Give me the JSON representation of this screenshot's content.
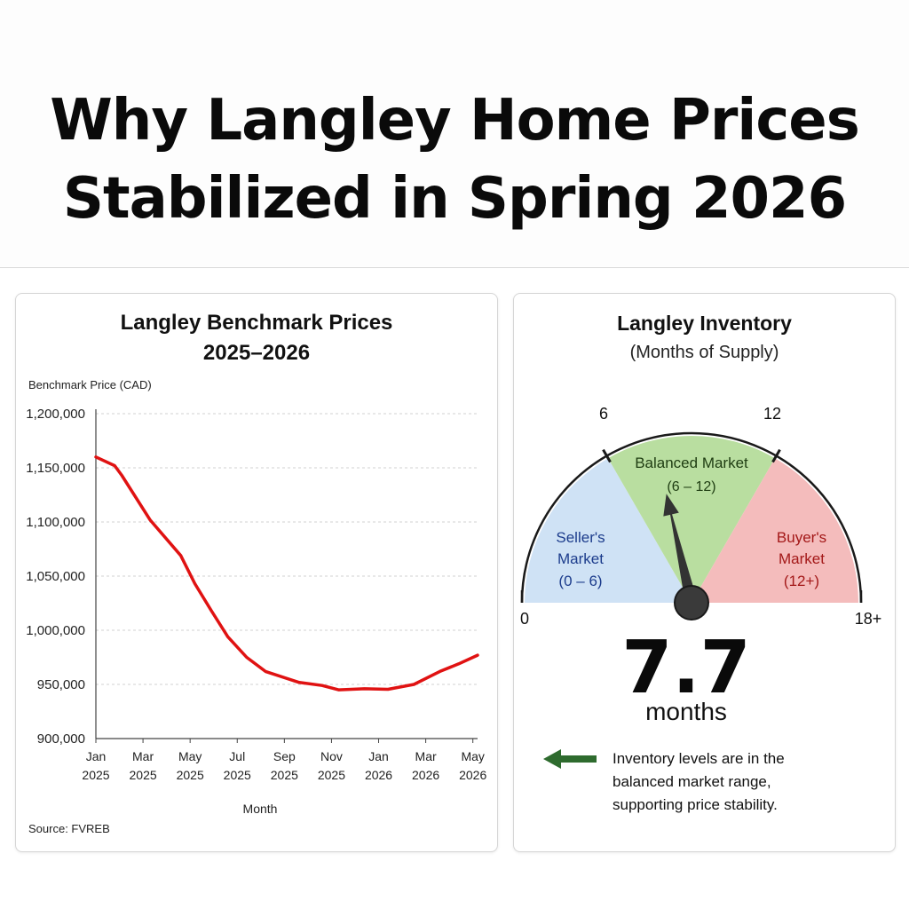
{
  "page": {
    "title_line1": "Why Langley Home Prices",
    "title_line2": "Stabilized in Spring 2026"
  },
  "price_chart": {
    "title_line1": "Langley Benchmark Prices",
    "title_line2": "2025–2026",
    "source": "Source: FVREB"
  },
  "inventory": {
    "title": "Langley Inventory",
    "subtitle": "(Months of Supply)",
    "value": "7.7",
    "value_unit": "months",
    "value_number": 7.7,
    "scale_min": 0,
    "scale_max": 18,
    "scale_labels": {
      "min": "0",
      "six": "6",
      "twelve": "12",
      "max": "18+"
    },
    "zones": [
      {
        "id": "sellers",
        "line1": "Seller's",
        "line2": "Market",
        "line3": "(0 – 6)",
        "from": 0,
        "to": 6,
        "fill": "#cfe2f5",
        "text_color": "#1c3c8c"
      },
      {
        "id": "balanced",
        "line1": "Balanced Market",
        "line2": "(6 – 12)",
        "from": 6,
        "to": 12,
        "fill": "#b9dea0",
        "text_color": "#1f3d12"
      },
      {
        "id": "buyers",
        "line1": "Buyer's",
        "line2": "Market",
        "line3": "(12+)",
        "from": 12,
        "to": 18,
        "fill": "#f4bcbc",
        "text_color": "#a31818"
      }
    ],
    "note_line1": "Inventory levels are in the",
    "note_line2": "balanced market range,",
    "note_line3": "supporting price stability.",
    "arrow_color": "#2e6b2e"
  },
  "chart_data": {
    "type": "line",
    "title": "Langley Benchmark Prices 2025–2026",
    "xlabel": "Month",
    "ylabel": "Benchmark Price (CAD)",
    "ylim": [
      900000,
      1200000
    ],
    "y_ticks": [
      "1,200,000",
      "1,150,000",
      "1,100,000",
      "1,050,000",
      "1,000,000",
      "950,000",
      "900,000"
    ],
    "y_tick_values": [
      1200000,
      1150000,
      1100000,
      1050000,
      1000000,
      950000,
      900000
    ],
    "x_ticks": [
      {
        "month": 0,
        "line1": "Jan",
        "line2": "2025"
      },
      {
        "month": 2,
        "line1": "Mar",
        "line2": "2025"
      },
      {
        "month": 4,
        "line1": "May",
        "line2": "2025"
      },
      {
        "month": 6,
        "line1": "Jul",
        "line2": "2025"
      },
      {
        "month": 8,
        "line1": "Sep",
        "line2": "2025"
      },
      {
        "month": 10,
        "line1": "Nov",
        "line2": "2025"
      },
      {
        "month": 12,
        "line1": "Jan",
        "line2": "2026"
      },
      {
        "month": 14,
        "line1": "Mar",
        "line2": "2026"
      },
      {
        "month": 16,
        "line1": "May",
        "line2": "2026"
      }
    ],
    "grid": "horizontal dashed",
    "series": [
      {
        "color": "#e01212",
        "points": [
          {
            "x": "Jan 2025",
            "month": 0,
            "y": 1160000
          },
          {
            "x": "Feb 2025",
            "month": 0.8,
            "y": 1152000
          },
          {
            "x": "Feb 2025",
            "month": 1.1,
            "y": 1143000
          },
          {
            "x": "Mar 2025",
            "month": 2.3,
            "y": 1102000
          },
          {
            "x": "Apr 2025",
            "month": 3.6,
            "y": 1069000
          },
          {
            "x": "May 2025",
            "month": 4.2,
            "y": 1043000
          },
          {
            "x": "May 2025",
            "month": 4.9,
            "y": 1018000
          },
          {
            "x": "Jun 2025",
            "month": 5.6,
            "y": 994000
          },
          {
            "x": "Jul 2025",
            "month": 6.4,
            "y": 975000
          },
          {
            "x": "Aug 2025",
            "month": 7.2,
            "y": 962000
          },
          {
            "x": "Sep 2025",
            "month": 8.6,
            "y": 952000
          },
          {
            "x": "Oct 2025",
            "month": 9.6,
            "y": 949000
          },
          {
            "x": "Nov 2025",
            "month": 10.3,
            "y": 945000
          },
          {
            "x": "Dec 2025",
            "month": 11.4,
            "y": 946000
          },
          {
            "x": "Jan 2026",
            "month": 12.4,
            "y": 945500
          },
          {
            "x": "Feb 2026",
            "month": 13.5,
            "y": 950000
          },
          {
            "x": "Mar 2026",
            "month": 14.6,
            "y": 962000
          },
          {
            "x": "Apr 2026",
            "month": 15.4,
            "y": 969000
          },
          {
            "x": "May 2026",
            "month": 16.2,
            "y": 977000
          }
        ]
      }
    ]
  }
}
